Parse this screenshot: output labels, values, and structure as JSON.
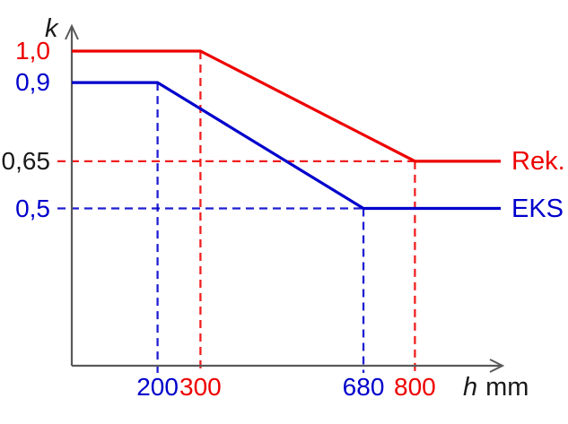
{
  "figure": {
    "background": "#ffffff",
    "axis_color": "#595959",
    "text_color": "#1a1a1a"
  },
  "chart_data": {
    "type": "line",
    "title": "",
    "xlabel_var": "h",
    "xlabel_unit": "mm",
    "ylabel": "k",
    "xlim": [
      0,
      1000
    ],
    "ylim": [
      0,
      1.08
    ],
    "grid": false,
    "legend_position": "right-of-line-end",
    "series": [
      {
        "name": "Rek.",
        "id": "rek",
        "color": "#ee0000",
        "points": [
          [
            0,
            1.0
          ],
          [
            300,
            1.0
          ],
          [
            800,
            0.65
          ],
          [
            1000,
            0.65
          ]
        ]
      },
      {
        "name": "EKS",
        "id": "eks",
        "color": "#0000cc",
        "points": [
          [
            0,
            0.9
          ],
          [
            200,
            0.9
          ],
          [
            680,
            0.5
          ],
          [
            1000,
            0.5
          ]
        ]
      }
    ],
    "x_ticks": [
      {
        "value": 200,
        "label": "200",
        "color": "#0000cc"
      },
      {
        "value": 300,
        "label": "300",
        "color": "#ee0000"
      },
      {
        "value": 680,
        "label": "680",
        "color": "#0000cc"
      },
      {
        "value": 800,
        "label": "800",
        "color": "#ee0000"
      }
    ],
    "y_ticks": [
      {
        "value": 1.0,
        "label": "1,0",
        "color": "#ee0000"
      },
      {
        "value": 0.9,
        "label": "0,9",
        "color": "#0000cc"
      },
      {
        "value": 0.65,
        "label": "0,65",
        "color": "#1a1a1a"
      },
      {
        "value": 0.5,
        "label": "0,5",
        "color": "#0000cc"
      }
    ],
    "guides": [
      {
        "orient": "v",
        "x": 300,
        "y_top": 1.0,
        "color": "#ee0000"
      },
      {
        "orient": "v",
        "x": 800,
        "y_top": 0.65,
        "color": "#ee0000"
      },
      {
        "orient": "h",
        "y": 0.65,
        "x_right": 800,
        "color": "#ee0000"
      },
      {
        "orient": "v",
        "x": 200,
        "y_top": 0.9,
        "color": "#0000cc"
      },
      {
        "orient": "v",
        "x": 680,
        "y_top": 0.5,
        "color": "#0000cc"
      },
      {
        "orient": "h",
        "y": 0.5,
        "x_right": 680,
        "color": "#0000cc"
      }
    ]
  }
}
